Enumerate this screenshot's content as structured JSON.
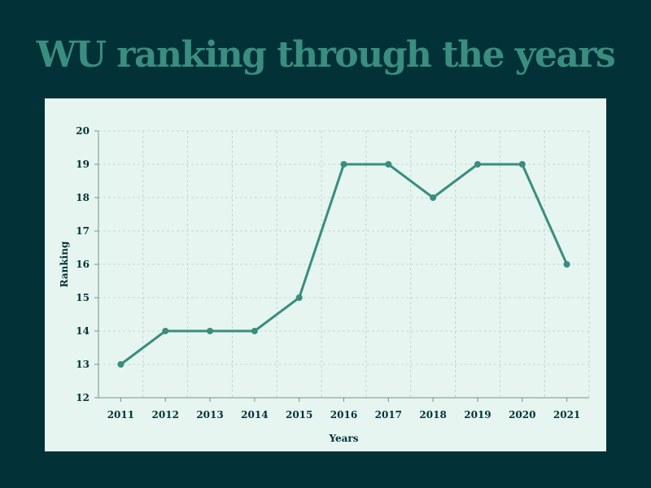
{
  "title": "WU ranking through the years",
  "chart_data": {
    "type": "line",
    "title": "WU ranking through the years",
    "xlabel": "Years",
    "ylabel": "Ranking",
    "categories": [
      "2011",
      "2012",
      "2013",
      "2014",
      "2015",
      "2016",
      "2017",
      "2018",
      "2019",
      "2020",
      "2021"
    ],
    "values": [
      13,
      14,
      14,
      14,
      15,
      19,
      19,
      18,
      19,
      19,
      16
    ],
    "ylim": [
      12,
      20
    ],
    "yticks": [
      12,
      13,
      14,
      15,
      16,
      17,
      18,
      19,
      20
    ],
    "grid": true,
    "colors": {
      "line": "#3a8d7f",
      "background": "#023237",
      "panel": "#e6f5f0",
      "text": "#023237",
      "grid": "#b9cfc8"
    }
  }
}
